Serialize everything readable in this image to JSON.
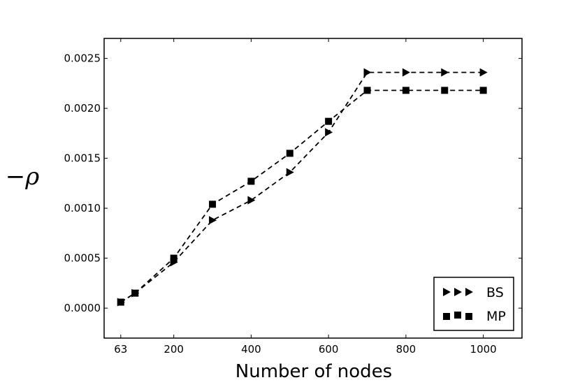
{
  "chart_data": {
    "type": "line",
    "title": "",
    "xlabel": "Number of nodes",
    "ylabel": "−ρ",
    "xlim": [
      20,
      1100
    ],
    "ylim": [
      -0.0003,
      0.0027
    ],
    "xticks": [
      63,
      200,
      400,
      600,
      800,
      1000
    ],
    "xtick_labels": [
      "63",
      "200",
      "400",
      "600",
      "800",
      "1000"
    ],
    "yticks": [
      0.0,
      0.0005,
      0.001,
      0.0015,
      0.002,
      0.0025
    ],
    "ytick_labels": [
      "0.0000",
      "0.0005",
      "0.0010",
      "0.0015",
      "0.0020",
      "0.0025"
    ],
    "grid": false,
    "legend": "lower-right",
    "line_style": "dashed",
    "series": [
      {
        "name": "BS",
        "marker": "triangle-right",
        "x": [
          63,
          100,
          200,
          300,
          400,
          500,
          600,
          700,
          800,
          900,
          1000
        ],
        "y": [
          6e-05,
          0.00015,
          0.00046,
          0.00088,
          0.00108,
          0.00136,
          0.00176,
          0.00236,
          0.00236,
          0.00236,
          0.00236
        ]
      },
      {
        "name": "MP",
        "marker": "square",
        "x": [
          63,
          100,
          200,
          300,
          400,
          500,
          600,
          700,
          800,
          900,
          1000
        ],
        "y": [
          6e-05,
          0.00015,
          0.0005,
          0.00104,
          0.00127,
          0.00155,
          0.00187,
          0.00218,
          0.00218,
          0.00218,
          0.00218
        ]
      }
    ]
  }
}
